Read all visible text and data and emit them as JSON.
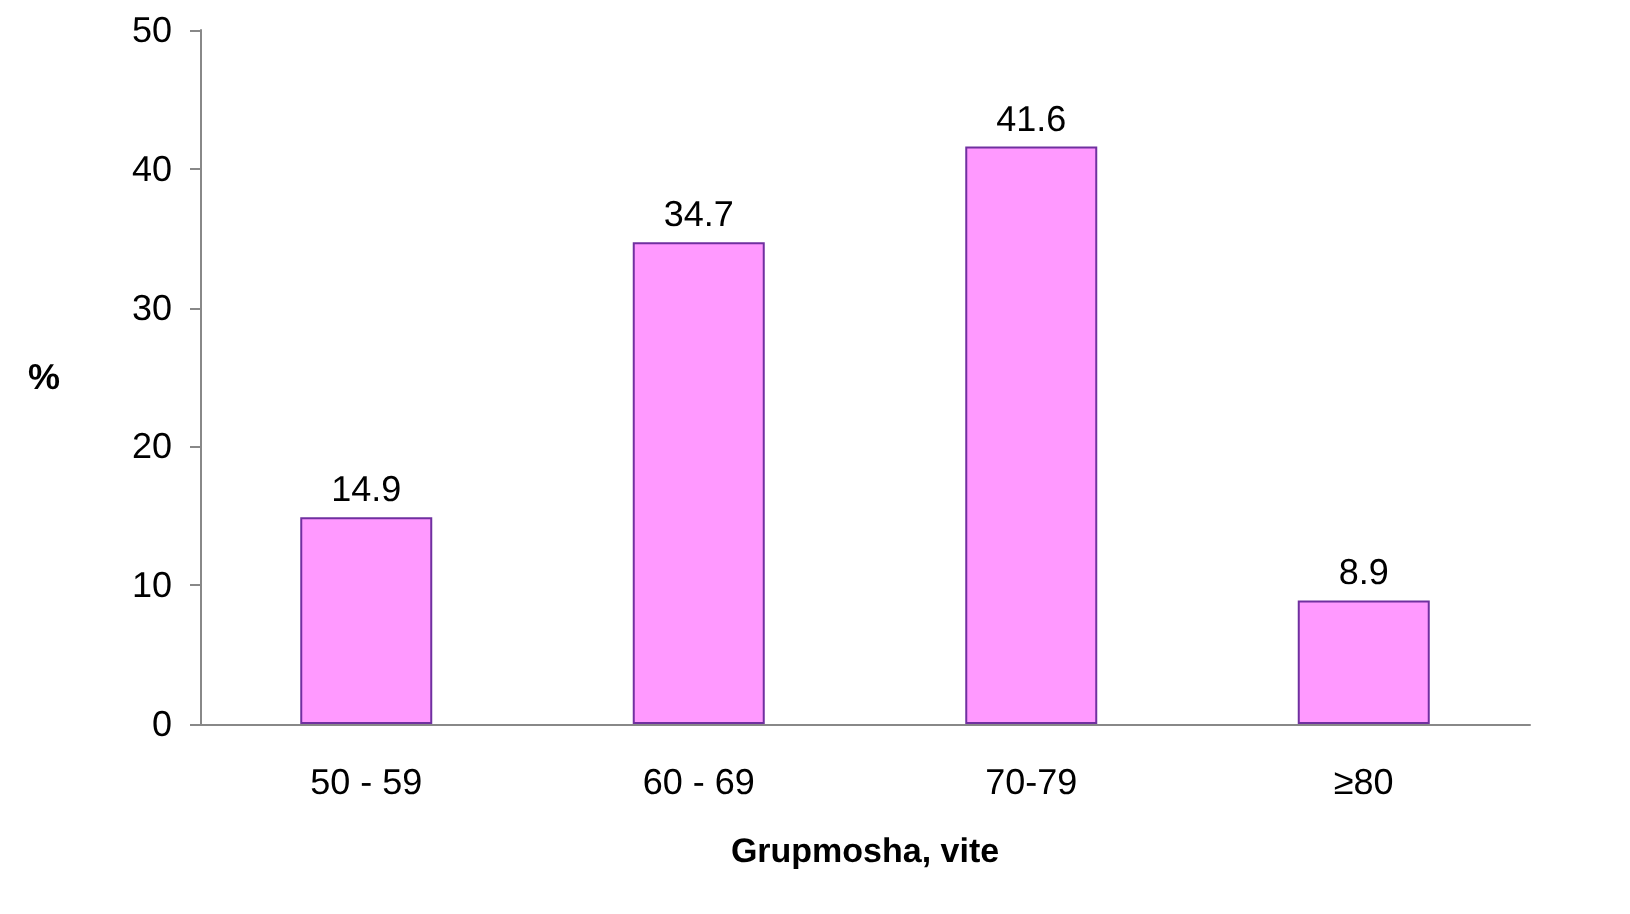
{
  "chart_data": {
    "type": "bar",
    "xlabel": "Grupmosha, vite",
    "ylabel": "%",
    "categories": [
      "50 - 59",
      "60 - 69",
      "70-79",
      "≥80"
    ],
    "values": [
      14.9,
      34.7,
      41.6,
      8.9
    ],
    "color": "#ff99ff",
    "ylim": [
      0,
      50
    ],
    "yticks": [
      0,
      10,
      20,
      30,
      40,
      50
    ],
    "grid": false,
    "data_labels": true
  }
}
